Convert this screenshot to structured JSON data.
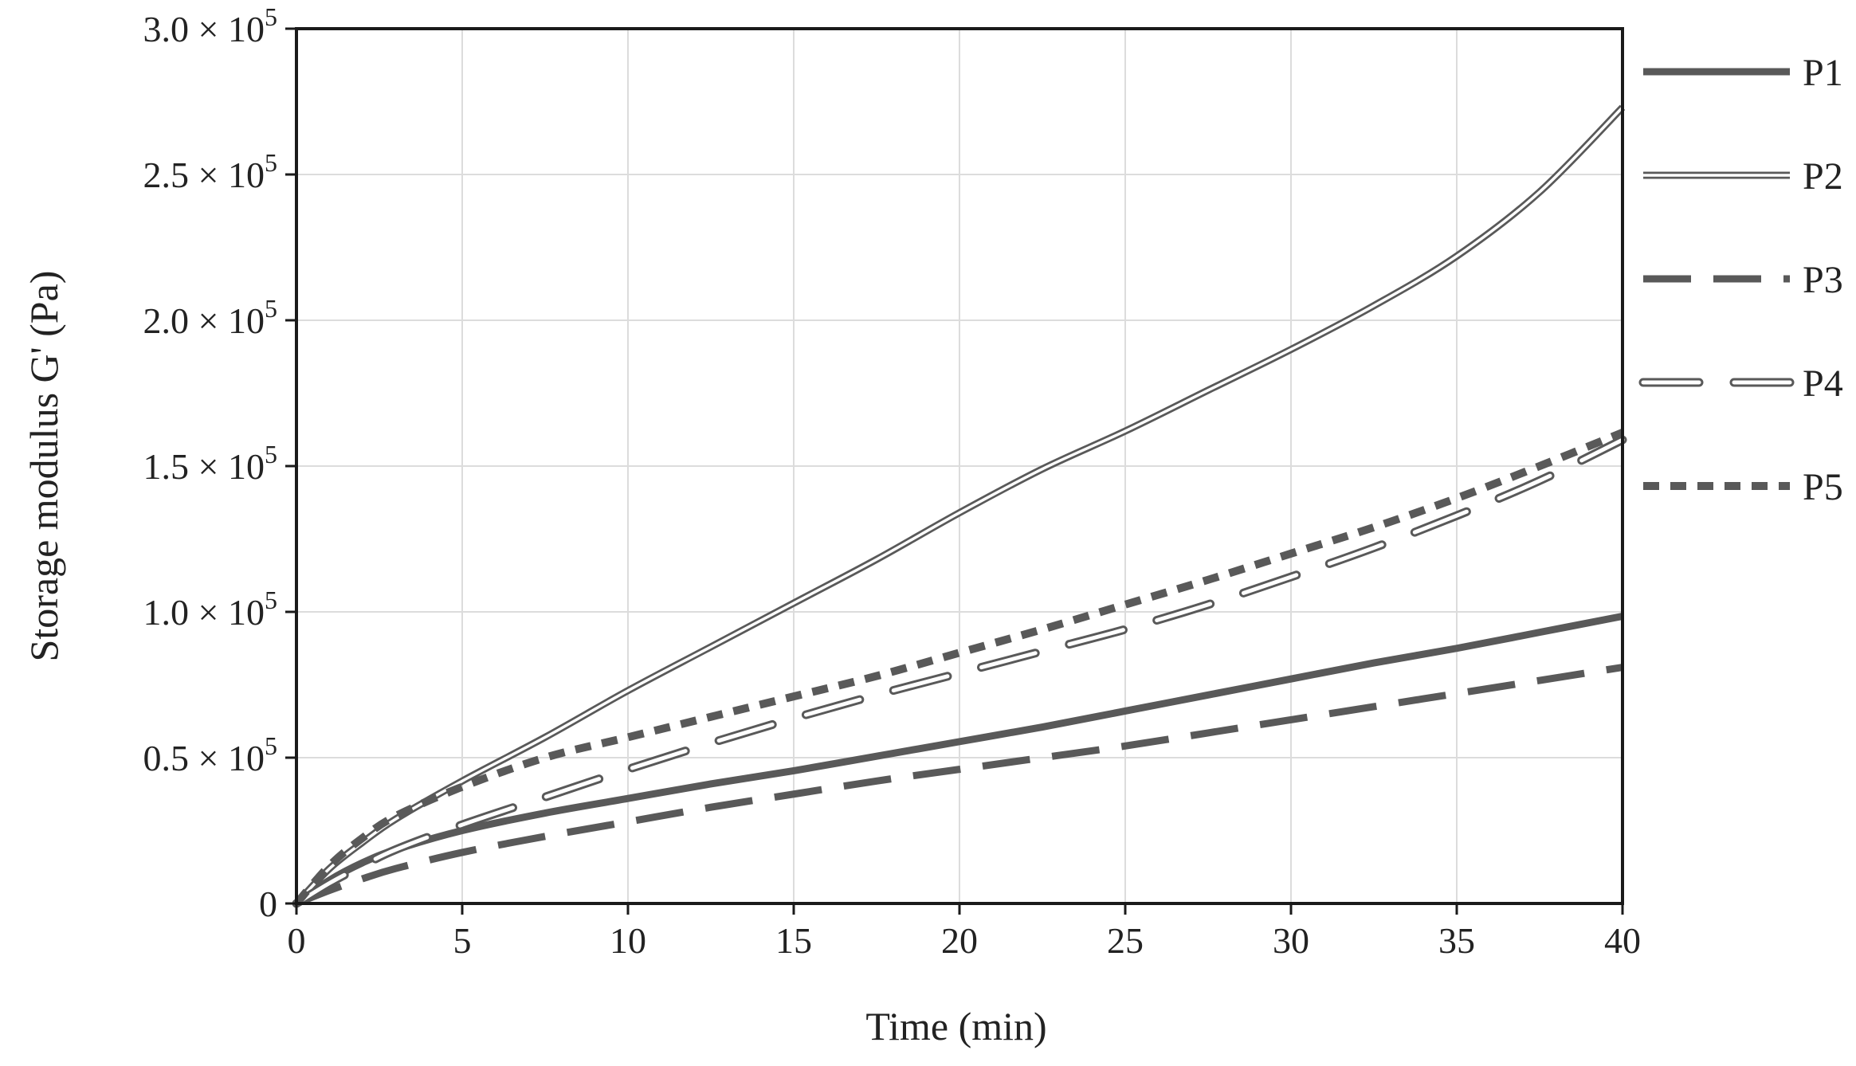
{
  "chart_data": {
    "type": "line",
    "title": "",
    "xlabel": "Time (min)",
    "ylabel": "Storage modulus G' (Pa)",
    "xlim": [
      0,
      40
    ],
    "ylim": [
      0,
      300000
    ],
    "grid": true,
    "legend_position": "right",
    "x_ticks": [
      0,
      5,
      10,
      15,
      20,
      25,
      30,
      35,
      40
    ],
    "x_tick_labels": [
      "0",
      "5",
      "10",
      "15",
      "20",
      "25",
      "30",
      "35",
      "40"
    ],
    "y_ticks": [
      {
        "value": 0,
        "mantissa": "0",
        "exponent": ""
      },
      {
        "value": 50000,
        "mantissa": "0.5 × 10",
        "exponent": "5"
      },
      {
        "value": 100000,
        "mantissa": "1.0 × 10",
        "exponent": "5"
      },
      {
        "value": 150000,
        "mantissa": "1.5 × 10",
        "exponent": "5"
      },
      {
        "value": 200000,
        "mantissa": "2.0 × 10",
        "exponent": "5"
      },
      {
        "value": 250000,
        "mantissa": "2.5 × 10",
        "exponent": "5"
      },
      {
        "value": 300000,
        "mantissa": "3.0 × 10",
        "exponent": "5"
      }
    ],
    "x": [
      0,
      1,
      2,
      3,
      5,
      7.5,
      10,
      12.5,
      15,
      17.5,
      20,
      22.5,
      25,
      27.5,
      30,
      32.5,
      35,
      37.5,
      40
    ],
    "series": [
      {
        "name": "P1",
        "style": "solid",
        "color": "#595959",
        "values": [
          0,
          8000,
          14000,
          18500,
          25000,
          31000,
          36000,
          41000,
          45500,
          50500,
          55500,
          60500,
          66000,
          71500,
          77000,
          82500,
          87500,
          93000,
          98500
        ]
      },
      {
        "name": "P2",
        "style": "double",
        "color": "#595959",
        "values": [
          0,
          12000,
          21000,
          29000,
          42000,
          57000,
          73000,
          88000,
          103000,
          118000,
          134000,
          149000,
          162000,
          176000,
          190000,
          205000,
          222000,
          244000,
          273000
        ]
      },
      {
        "name": "P3",
        "style": "dashed",
        "color": "#595959",
        "values": [
          0,
          4500,
          8500,
          12000,
          17500,
          23000,
          28000,
          33000,
          37500,
          42000,
          46000,
          50000,
          54000,
          58500,
          63000,
          67500,
          72000,
          76500,
          81000
        ]
      },
      {
        "name": "P4",
        "style": "double-dashed",
        "color": "#595959",
        "values": [
          0,
          7000,
          13000,
          18500,
          27000,
          36500,
          46000,
          55000,
          63500,
          71500,
          79000,
          86500,
          94000,
          102500,
          112000,
          122000,
          133000,
          145000,
          159000
        ]
      },
      {
        "name": "P5",
        "style": "dotted",
        "color": "#595959",
        "values": [
          0,
          13000,
          22500,
          30000,
          40000,
          50000,
          57000,
          64000,
          71000,
          78000,
          86000,
          94000,
          102500,
          111000,
          120000,
          129000,
          139000,
          150000,
          161500
        ]
      }
    ]
  }
}
